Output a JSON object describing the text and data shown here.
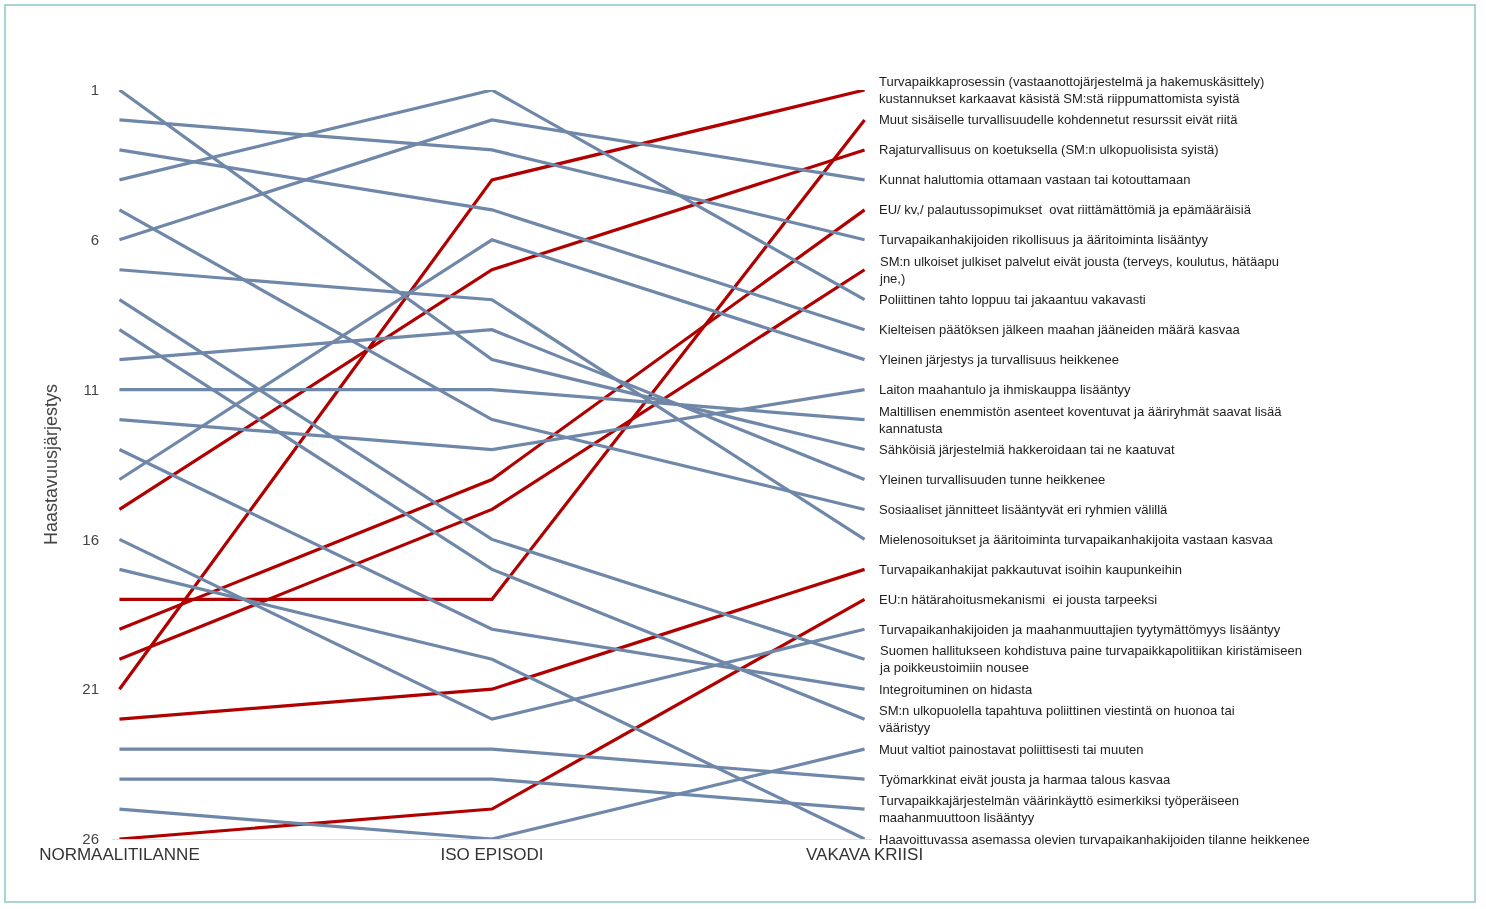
{
  "chart_data": {
    "type": "line",
    "ylabel": "Haastavuusjärjestys",
    "categories": [
      "NORMAALITILANNE",
      "ISO EPISODI",
      "VAKAVA KRIISI"
    ],
    "ylim": [
      26,
      1
    ],
    "yticks": [
      1,
      6,
      11,
      16,
      21,
      26
    ],
    "grid": false,
    "legend": false,
    "marker": "none",
    "line_style": "solid",
    "series": [
      {
        "name": "Turvapaikkaprosessin (vastaanottojärjestelmä ja hakemuskäsittely) kustannukset karkaavat käsistä SM:stä riippumattomista syistä",
        "color": "#b00000",
        "values": [
          21,
          4,
          1
        ]
      },
      {
        "name": "Muut sisäiselle turvallisuudelle kohdennetut resurssit eivät riitä",
        "color": "#b00000",
        "values": [
          18,
          18,
          2
        ]
      },
      {
        "name": "Rajaturvallisuus on koetuksella (SM:n ulkopuolisista syistä)",
        "color": "#b00000",
        "values": [
          15,
          7,
          3
        ]
      },
      {
        "name": "Kunnat haluttomia ottamaan vastaan tai kotouttamaan",
        "color": "#6f87a8",
        "values": [
          6,
          2,
          4
        ]
      },
      {
        "name": "EU/ kv,/ palautussopimukset  ovat riittämättömiä ja epämääräisiä",
        "color": "#b00000",
        "values": [
          19,
          14,
          5
        ]
      },
      {
        "name": "Turvapaikanhakijoiden rikollisuus ja ääritoiminta lisääntyy",
        "color": "#6f87a8",
        "values": [
          2,
          3,
          6
        ]
      },
      {
        "name": "SM:n ulkoiset julkiset palvelut eivät jousta (terveys, koulutus, hätäapu jne,)",
        "color": "#b00000",
        "values": [
          20,
          15,
          7
        ]
      },
      {
        "name": "Poliittinen tahto loppuu tai jakaantuu vakavasti",
        "color": "#6f87a8",
        "values": [
          4,
          1,
          8
        ]
      },
      {
        "name": "Kielteisen päätöksen jälkeen maahan jääneiden määrä kasvaa",
        "color": "#6f87a8",
        "values": [
          3,
          5,
          9
        ]
      },
      {
        "name": "Yleinen järjestys ja turvallisuus heikkenee",
        "color": "#6f87a8",
        "values": [
          14,
          6,
          10
        ]
      },
      {
        "name": "Laiton maahantulo ja ihmiskauppa lisääntyy",
        "color": "#6f87a8",
        "values": [
          12,
          13,
          11
        ]
      },
      {
        "name": "Maltillisen enemmistön asenteet koventuvat ja ääriryhmät saavat lisää kannatusta",
        "color": "#6f87a8",
        "values": [
          11,
          11,
          12
        ]
      },
      {
        "name": "Sähköisiä järjestelmiä hakkeroidaan tai ne kaatuvat",
        "color": "#6f87a8",
        "values": [
          1,
          10,
          13
        ]
      },
      {
        "name": "Yleinen turvallisuuden tunne heikkenee",
        "color": "#6f87a8",
        "values": [
          10,
          9,
          14
        ]
      },
      {
        "name": "Sosiaaliset jännitteet lisääntyvät eri ryhmien välillä",
        "color": "#6f87a8",
        "values": [
          5,
          12,
          15
        ]
      },
      {
        "name": "Mielenosoitukset ja ääritoiminta turvapaikanhakijoita vastaan kasvaa",
        "color": "#6f87a8",
        "values": [
          7,
          8,
          16
        ]
      },
      {
        "name": "Turvapaikanhakijat pakkautuvat isoihin kaupunkeihin",
        "color": "#b00000",
        "values": [
          22,
          21,
          17
        ]
      },
      {
        "name": "EU:n hätärahoitusmekanismi  ei jousta tarpeeksi",
        "color": "#b00000",
        "values": [
          26,
          25,
          18
        ]
      },
      {
        "name": "Turvapaikanhakijoiden ja maahanmuuttajien tyytymättömyys lisääntyy",
        "color": "#6f87a8",
        "values": [
          16,
          22,
          19
        ]
      },
      {
        "name": "Suomen hallitukseen kohdistuva paine turvapaikkapolitiikan kiristämiseen ja poikkeustoimiin nousee",
        "color": "#6f87a8",
        "values": [
          8,
          16,
          20
        ]
      },
      {
        "name": "Integroituminen on hidasta",
        "color": "#6f87a8",
        "values": [
          13,
          19,
          21
        ]
      },
      {
        "name": "SM:n ulkopuolella tapahtuva poliittinen viestintä on huonoa tai vääristyy",
        "color": "#6f87a8",
        "values": [
          9,
          17,
          22
        ]
      },
      {
        "name": "Muut valtiot painostavat poliittisesti tai muuten",
        "color": "#6f87a8",
        "values": [
          25,
          26,
          23
        ]
      },
      {
        "name": "Työmarkkinat eivät jousta ja harmaa talous kasvaa",
        "color": "#6f87a8",
        "values": [
          23,
          23,
          24
        ]
      },
      {
        "name": "Turvapaikkajärjestelmän väärinkäyttö esimerkiksi työperäiseen maahanmuuttoon lisääntyy",
        "color": "#6f87a8",
        "values": [
          24,
          24,
          25
        ]
      },
      {
        "name": "Haavoittuvassa asemassa olevien turvapaikanhakijoiden tilanne heikkenee",
        "color": "#6f87a8",
        "values": [
          17,
          20,
          26
        ]
      }
    ]
  }
}
